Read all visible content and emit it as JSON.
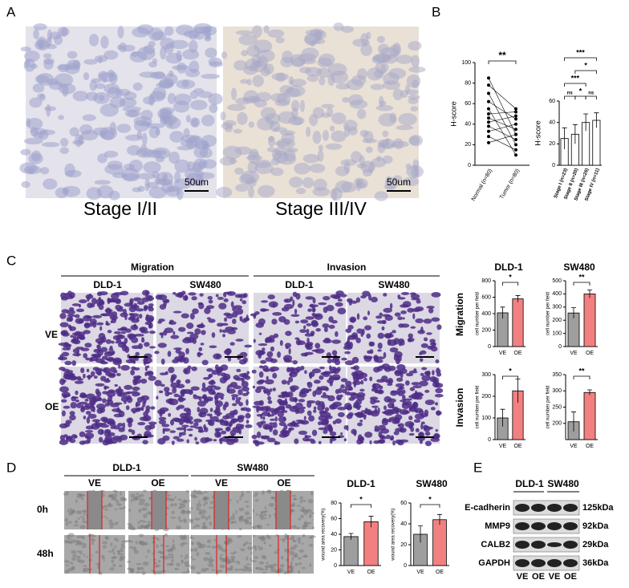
{
  "panel_a": {
    "label": "A",
    "captions": [
      "Stage I/II",
      "Stage III/IV"
    ],
    "scale_bar": "50um"
  },
  "panel_b": {
    "label": "B"
  },
  "panel_c": {
    "label": "C",
    "assays": [
      "Migration",
      "Invasion"
    ],
    "cell_lines": [
      "DLD-1",
      "SW480"
    ],
    "rows": [
      "VE",
      "OE"
    ]
  },
  "panel_d": {
    "label": "D",
    "cell_lines": [
      "DLD-1",
      "SW480"
    ],
    "groups": [
      "VE",
      "OE"
    ],
    "rows": [
      "0h",
      "48h"
    ]
  },
  "panel_e": {
    "label": "E",
    "cell_lines": [
      "DLD-1",
      "SW480"
    ],
    "proteins": [
      "E-cadherin",
      "MMP9",
      "CALB2",
      "GAPDH"
    ],
    "sizes": [
      "125kDa",
      "92kDa",
      "29kDa",
      "36kDa"
    ],
    "lanes": [
      "VE",
      "OE",
      "VE",
      "OE"
    ]
  },
  "chart_data": [
    {
      "type": "paired",
      "y_label": "H-score",
      "categories": [
        "Normal (n=80)",
        "Tumor (n=80)"
      ],
      "values": [
        [
          85,
          78,
          70,
          62,
          55,
          50,
          46,
          42,
          38,
          33,
          28,
          22
        ],
        [
          30,
          55,
          20,
          45,
          10,
          52,
          35,
          48,
          25,
          40,
          15,
          30
        ]
      ],
      "ylim": [
        0,
        100
      ],
      "yticks": [
        0,
        20,
        40,
        60,
        80,
        100
      ],
      "significance": "**"
    },
    {
      "type": "bar",
      "y_label": "H-score",
      "categories": [
        "Stage I (n=23)",
        "Stage II (n=20)",
        "Stage III (n=26)",
        "Stage IV (n=11)"
      ],
      "values": [
        25,
        29,
        40,
        42
      ],
      "errors": [
        10,
        9,
        8,
        7
      ],
      "color": "#ffffff",
      "ylim": [
        0,
        60
      ],
      "yticks": [
        0,
        20,
        40,
        60
      ],
      "brackets": [
        {
          "label": "ns",
          "between": [
            0,
            1
          ]
        },
        {
          "label": "*",
          "between": [
            1,
            2
          ]
        },
        {
          "label": "ns",
          "between": [
            2,
            3
          ]
        },
        {
          "label": "***",
          "between": [
            0,
            2
          ]
        },
        {
          "label": "*",
          "between": [
            1,
            3
          ]
        },
        {
          "label": "***",
          "between": [
            0,
            3
          ]
        }
      ]
    },
    {
      "type": "bar",
      "y_label": "cell number per field",
      "categories": [
        "VE",
        "OE"
      ],
      "values": [
        410,
        580
      ],
      "errors": [
        70,
        40
      ],
      "colors": [
        "#9e9e9e",
        "#f28080"
      ],
      "ylim": [
        0,
        800
      ],
      "yticks": [
        0,
        200,
        400,
        600,
        800
      ],
      "significance": "*"
    },
    {
      "type": "bar",
      "y_label": "cell number per field",
      "categories": [
        "VE",
        "OE"
      ],
      "values": [
        255,
        400
      ],
      "errors": [
        40,
        30
      ],
      "colors": [
        "#9e9e9e",
        "#f28080"
      ],
      "ylim": [
        0,
        500
      ],
      "yticks": [
        0,
        100,
        200,
        300,
        400,
        500
      ],
      "significance": "**"
    },
    {
      "type": "bar",
      "y_label": "cell number per field",
      "categories": [
        "VE",
        "OE"
      ],
      "values": [
        100,
        225
      ],
      "errors": [
        40,
        55
      ],
      "colors": [
        "#9e9e9e",
        "#f28080"
      ],
      "ylim": [
        0,
        300
      ],
      "yticks": [
        0,
        100,
        200,
        300
      ],
      "significance": "*"
    },
    {
      "type": "bar",
      "y_label": "cell number per field",
      "categories": [
        "VE",
        "OE"
      ],
      "values": [
        205,
        295
      ],
      "errors": [
        30,
        8
      ],
      "colors": [
        "#9e9e9e",
        "#f28080"
      ],
      "ylim": [
        150,
        350
      ],
      "yticks": [
        200,
        250,
        300,
        350
      ],
      "significance": "**"
    },
    {
      "type": "bar",
      "y_label": "wound area recovery(%)",
      "categories": [
        "VE",
        "OE"
      ],
      "values": [
        37,
        56
      ],
      "errors": [
        4,
        7
      ],
      "colors": [
        "#9e9e9e",
        "#f28080"
      ],
      "ylim": [
        0,
        80
      ],
      "yticks": [
        0,
        20,
        40,
        60,
        80
      ],
      "significance": "*"
    },
    {
      "type": "bar",
      "y_label": "wound area recovery(%)",
      "categories": [
        "VE",
        "OE"
      ],
      "values": [
        30,
        44
      ],
      "errors": [
        8,
        5
      ],
      "colors": [
        "#9e9e9e",
        "#f28080"
      ],
      "ylim": [
        0,
        60
      ],
      "yticks": [
        0,
        20,
        40,
        60
      ],
      "significance": "*"
    }
  ]
}
